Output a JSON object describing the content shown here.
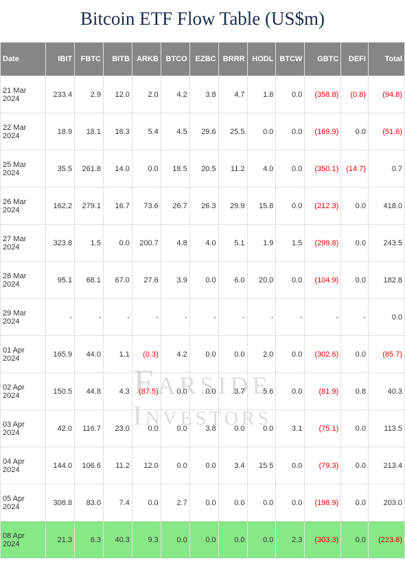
{
  "title": "Bitcoin ETF Flow Table (US$m)",
  "watermark": {
    "line1": "Farside",
    "line2": "Investors"
  },
  "colors": {
    "header_bg": "#868686",
    "header_fg": "#ffffff",
    "border": "#e0e0e0",
    "negative": "#e00000",
    "highlight_bg": "#88e888",
    "title_color": "#1a2d4a",
    "text": "#333333",
    "background": "#ffffff"
  },
  "typography": {
    "title_fontsize": 27,
    "header_fontsize": 11,
    "cell_fontsize": 11
  },
  "table": {
    "columns": [
      "Date",
      "IBIT",
      "FBTC",
      "BITB",
      "ARKB",
      "BTCO",
      "EZBC",
      "BRRR",
      "HODL",
      "BTCW",
      "GBTC",
      "DEFI",
      "Total"
    ],
    "rows": [
      {
        "date": "21 Mar 2024",
        "vals": [
          "233.4",
          "2.9",
          "12.0",
          "2.0",
          "4.2",
          "3.8",
          "4.7",
          "1.8",
          "0.0",
          "(358.8)",
          "(0.8)",
          "(94.8)"
        ],
        "highlight": false
      },
      {
        "date": "22 Mar 2024",
        "vals": [
          "18.9",
          "18.1",
          "16.3",
          "5.4",
          "4.5",
          "29.6",
          "25.5",
          "0.0",
          "0.0",
          "(169.9)",
          "0.0",
          "(51.6)"
        ],
        "highlight": false
      },
      {
        "date": "25 Mar 2024",
        "vals": [
          "35.5",
          "261.8",
          "14.0",
          "0.0",
          "18.5",
          "20.5",
          "11.2",
          "4.0",
          "0.0",
          "(350.1)",
          "(14.7)",
          "0.7"
        ],
        "highlight": false
      },
      {
        "date": "26 Mar 2024",
        "vals": [
          "162.2",
          "279.1",
          "16.7",
          "73.6",
          "26.7",
          "26.3",
          "29.9",
          "15.8",
          "0.0",
          "(212.3)",
          "0.0",
          "418.0"
        ],
        "highlight": false
      },
      {
        "date": "27 Mar 2024",
        "vals": [
          "323.8",
          "1.5",
          "0.0",
          "200.7",
          "4.8",
          "4.0",
          "5.1",
          "1.9",
          "1.5",
          "(299.8)",
          "0.0",
          "243.5"
        ],
        "highlight": false
      },
      {
        "date": "28 Mar 2024",
        "vals": [
          "95.1",
          "68.1",
          "67.0",
          "27.6",
          "3.9",
          "0.0",
          "6.0",
          "20.0",
          "0.0",
          "(104.9)",
          "0.0",
          "182.8"
        ],
        "highlight": false
      },
      {
        "date": "29 Mar 2024",
        "vals": [
          "-",
          "-",
          "-",
          "-",
          "-",
          "-",
          "-",
          "-",
          "-",
          "-",
          "-",
          "0.0"
        ],
        "highlight": false
      },
      {
        "date": "01 Apr 2024",
        "vals": [
          "165.9",
          "44.0",
          "1.1",
          "(0.3)",
          "4.2",
          "0.0",
          "0.0",
          "2.0",
          "0.0",
          "(302.6)",
          "0.0",
          "(85.7)"
        ],
        "highlight": false
      },
      {
        "date": "02 Apr 2024",
        "vals": [
          "150.5",
          "44.8",
          "4.3",
          "(87.5)",
          "0.0",
          "0.0",
          "3.7",
          "5.6",
          "0.0",
          "(81.9)",
          "0.8",
          "40.3"
        ],
        "highlight": false
      },
      {
        "date": "03 Apr 2024",
        "vals": [
          "42.0",
          "116.7",
          "23.0",
          "0.0",
          "0.0",
          "3.8",
          "0.0",
          "0.0",
          "3.1",
          "(75.1)",
          "0.0",
          "113.5"
        ],
        "highlight": false
      },
      {
        "date": "04 Apr 2024",
        "vals": [
          "144.0",
          "106.6",
          "11.2",
          "12.0",
          "0.0",
          "0.0",
          "3.4",
          "15.5",
          "0.0",
          "(79.3)",
          "0.0",
          "213.4"
        ],
        "highlight": false
      },
      {
        "date": "05 Apr 2024",
        "vals": [
          "308.8",
          "83.0",
          "7.4",
          "0.0",
          "2.7",
          "0.0",
          "0.0",
          "0.0",
          "0.0",
          "(198.9)",
          "0.0",
          "203.0"
        ],
        "highlight": false
      },
      {
        "date": "08 Apr 2024",
        "vals": [
          "21.3",
          "6.3",
          "40.3",
          "9.3",
          "0.0",
          "0.0",
          "0.0",
          "0.0",
          "2.3",
          "(303.3)",
          "0.0",
          "(223.8)"
        ],
        "highlight": true
      }
    ]
  }
}
